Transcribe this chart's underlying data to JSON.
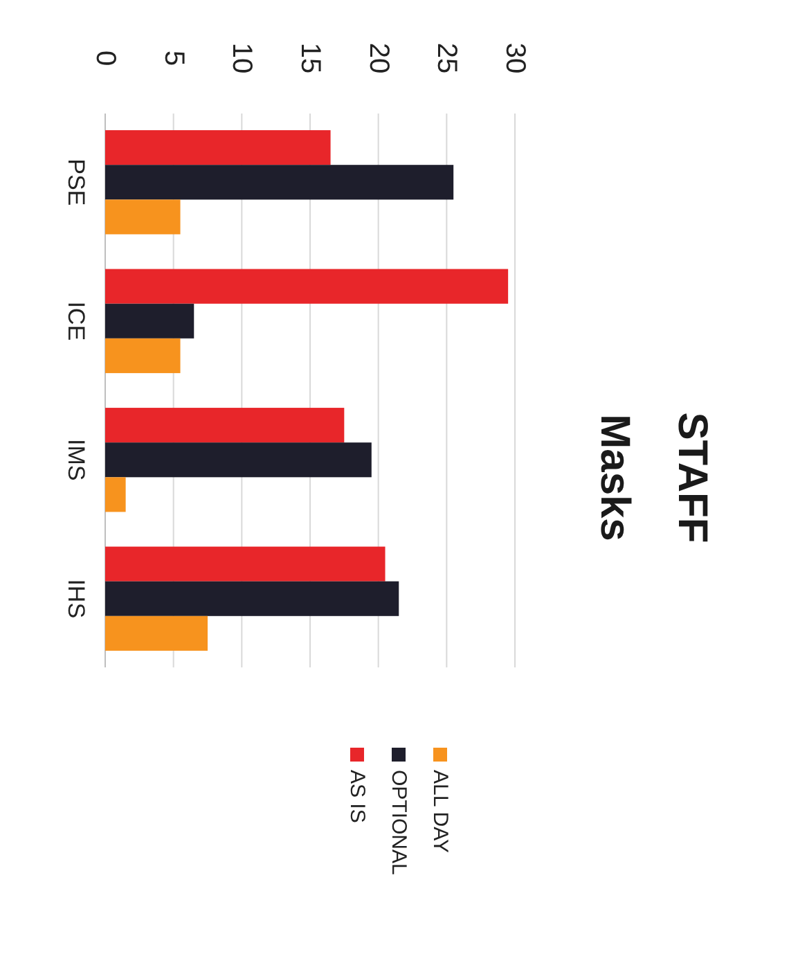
{
  "chart_data": {
    "type": "bar",
    "orientation": "horizontal",
    "title": "STAFF\nMasks",
    "categories": [
      "PSE",
      "ICE",
      "IMS",
      "IHS"
    ],
    "series": [
      {
        "name": "AS IS",
        "color": "#e8262a",
        "values": [
          16.5,
          29.5,
          17.5,
          20.5
        ]
      },
      {
        "name": "OPTIONAL",
        "color": "#1e1e2c",
        "values": [
          25.5,
          6.5,
          19.5,
          21.5
        ]
      },
      {
        "name": "ALL DAY",
        "color": "#f7931e",
        "values": [
          5.5,
          5.5,
          1.5,
          7.5
        ]
      }
    ],
    "xlim": [
      0,
      30
    ],
    "xticks": [
      0,
      5,
      10,
      15,
      20,
      25,
      30
    ],
    "grid": "x",
    "legend": "bottom"
  }
}
